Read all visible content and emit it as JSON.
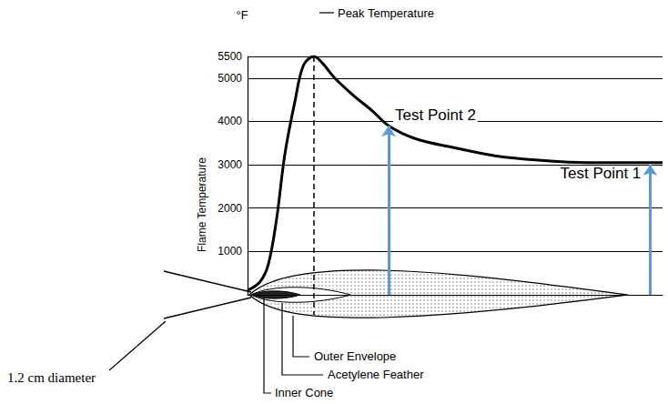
{
  "chart_data": {
    "type": "line",
    "ylabel": "Flame Temperature",
    "y_unit": "°F",
    "x": [
      0,
      3,
      5,
      7,
      9,
      11.5,
      13.5,
      16,
      18,
      21,
      25.5,
      30,
      34,
      40.5,
      49.5,
      60,
      71,
      82,
      92.5,
      100
    ],
    "values": [
      100,
      300,
      700,
      1750,
      3250,
      4500,
      5300,
      5500,
      5350,
      5000,
      4600,
      4250,
      3900,
      3600,
      3400,
      3200,
      3100,
      3050,
      3050,
      3050
    ],
    "color": "#000000",
    "xlim": [
      0,
      100
    ],
    "ylim": [
      0,
      5500
    ],
    "yticks": [
      1000,
      2000,
      3000,
      4000,
      5000,
      5500
    ],
    "grid": true,
    "tick_labels": "y",
    "annotations": [
      {
        "text": "Peak Temperature"
      },
      {
        "text": "Test Point 2",
        "x": 34,
        "y": 3900,
        "color": "#5b9bd5"
      },
      {
        "text": "Test Point 1",
        "x": 97,
        "y": 3000,
        "color": "#5b9bd5"
      }
    ],
    "flame_labels": [
      "Outer Envelope",
      "Acetylene Feather",
      "Inner Cone",
      "1.2 cm diameter"
    ]
  }
}
